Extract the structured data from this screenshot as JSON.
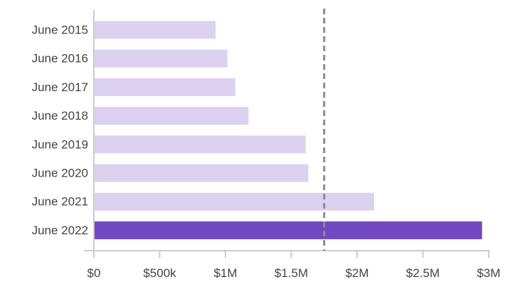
{
  "chart_data": {
    "type": "bar",
    "orientation": "horizontal",
    "categories": [
      "June 2015",
      "June 2016",
      "June 2017",
      "June 2018",
      "June 2019",
      "June 2020",
      "June 2021",
      "June 2022"
    ],
    "values": [
      925000,
      1015000,
      1075000,
      1175000,
      1610000,
      1630000,
      2130000,
      2950000
    ],
    "highlighted_category": "June 2022",
    "xlim": [
      0,
      3000000
    ],
    "x_ticks": [
      0,
      500000,
      1000000,
      1500000,
      2000000,
      2500000,
      3000000
    ],
    "x_tick_labels": [
      "$0",
      "$500k",
      "$1M",
      "$1.5M",
      "$2M",
      "$2.5M",
      "$3M"
    ],
    "reference_line": {
      "value": 1750000,
      "style": "dashed"
    },
    "grid": false,
    "legend": "none",
    "title": "",
    "xlabel": "",
    "ylabel": ""
  },
  "colors": {
    "bar": "#dcd2f0",
    "bar_highlight": "#7248c2",
    "reference_line": "#8c8c8c",
    "axis": "#cccccc"
  }
}
